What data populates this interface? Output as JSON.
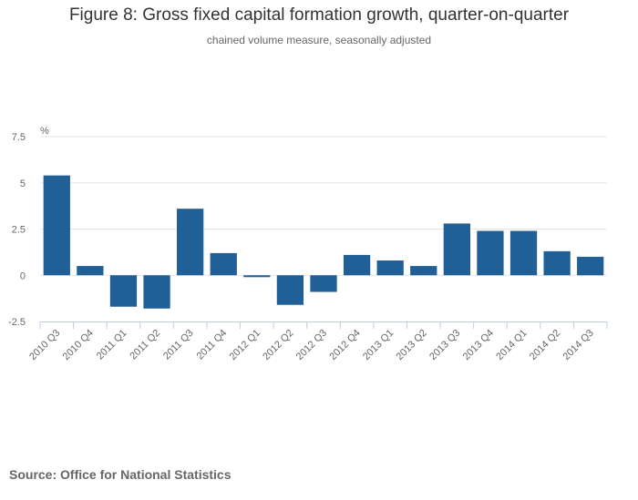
{
  "header": {
    "title": "Figure 8: Gross fixed capital formation growth, quarter-on-quarter",
    "subtitle": "chained volume measure, seasonally adjusted"
  },
  "footer": {
    "source": "Source: Office for National Statistics"
  },
  "colors": {
    "bar": "#215f97",
    "grid": "#e6e6e6",
    "axis": "#c0d0e0",
    "text": "#666666"
  },
  "chart_data": {
    "type": "bar",
    "title": "Figure 8: Gross fixed capital formation growth, quarter-on-quarter",
    "subtitle": "chained volume measure, seasonally adjusted",
    "xlabel": "",
    "ylabel": "%",
    "ylim": [
      -2.5,
      7.5
    ],
    "yticks": [
      -2.5,
      0,
      2.5,
      5,
      7.5
    ],
    "ytick_labels": [
      "-2.5",
      "0",
      "2.5",
      "5",
      "7.5"
    ],
    "grid": true,
    "legend": "none",
    "categories": [
      "2010 Q3",
      "2010 Q4",
      "2011 Q1",
      "2011 Q2",
      "2011 Q3",
      "2011 Q4",
      "2012 Q1",
      "2012 Q2",
      "2012 Q3",
      "2012 Q4",
      "2013 Q1",
      "2013 Q2",
      "2013 Q3",
      "2013 Q4",
      "2014 Q1",
      "2014 Q2",
      "2014 Q3"
    ],
    "series": [
      {
        "name": "Gross fixed capital formation growth",
        "values": [
          5.4,
          0.5,
          -1.7,
          -1.8,
          3.6,
          1.2,
          -0.1,
          -1.6,
          -0.9,
          1.1,
          0.8,
          0.5,
          2.8,
          2.4,
          2.4,
          1.3,
          1.0
        ]
      }
    ]
  }
}
